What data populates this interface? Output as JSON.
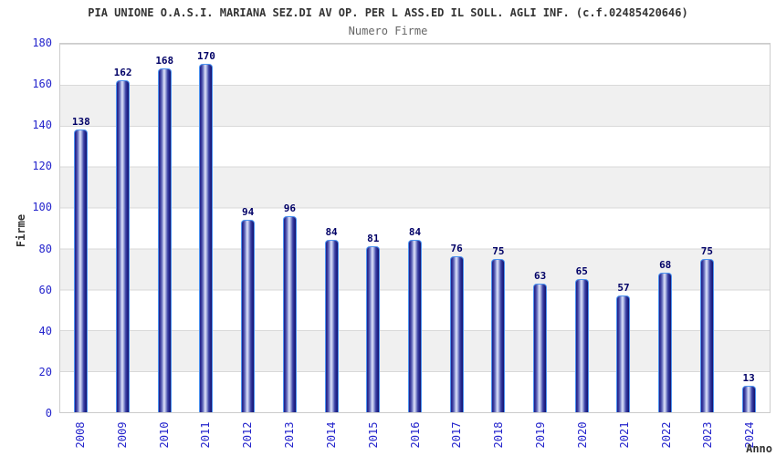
{
  "header": {
    "title": "PIA UNIONE O.A.S.I. MARIANA SEZ.DI AV OP. PER L ASS.ED IL SOLL. AGLI INF. (c.f.02485420646)",
    "subtitle": "Numero Firme"
  },
  "chart_data": {
    "type": "bar",
    "title": "Numero Firme",
    "categories": [
      "2008",
      "2009",
      "2010",
      "2011",
      "2012",
      "2013",
      "2014",
      "2015",
      "2016",
      "2017",
      "2018",
      "2019",
      "2020",
      "2021",
      "2022",
      "2023",
      "2024"
    ],
    "values": [
      138,
      162,
      168,
      170,
      94,
      96,
      84,
      81,
      84,
      76,
      75,
      63,
      65,
      57,
      68,
      75,
      13
    ],
    "xlabel": "Anno",
    "ylabel": "Firme",
    "ylim": [
      0,
      180
    ],
    "ytick_step": 20,
    "grid": true,
    "legend_position": "none",
    "band_alternation": true,
    "colors": {
      "bar_body_dark": "#1c1c80",
      "bar_body_light": "#dfe3f8",
      "bar_outline": "#4d94f0",
      "tick_label": "#2424cc",
      "value_label": "#000066",
      "band_gray": "#f0f0f0",
      "gridline": "#d9d9d9",
      "plot_border": "#cccccc",
      "title_text": "#333333",
      "subtitle_text": "#666666"
    }
  }
}
